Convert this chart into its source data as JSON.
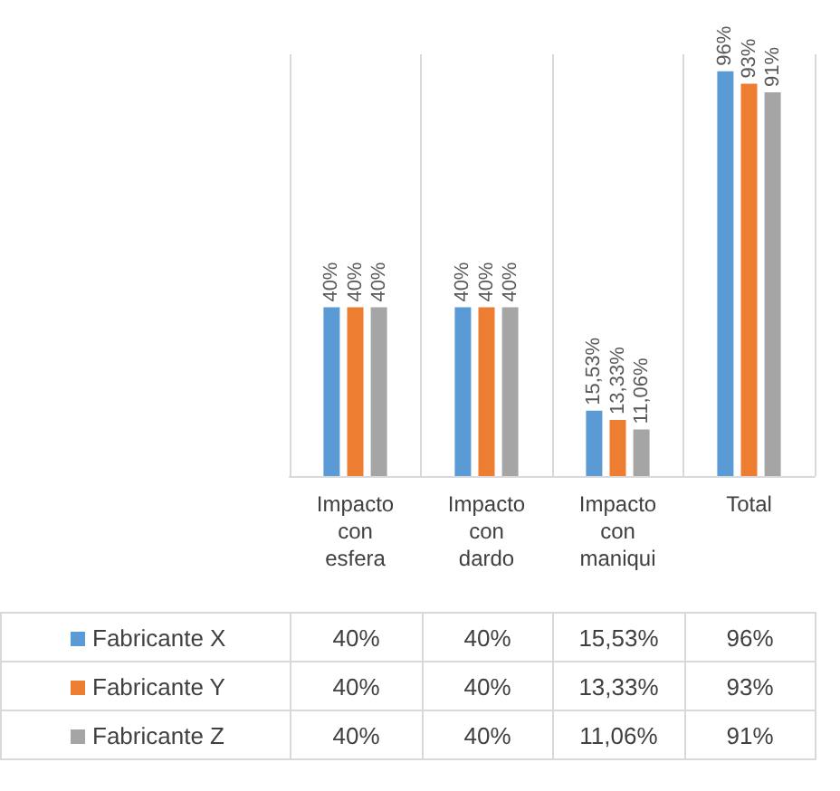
{
  "chart_data": {
    "type": "bar",
    "categories": [
      "Impacto con esfera",
      "Impacto con dardo",
      "Impacto con maniqui",
      "Total"
    ],
    "series": [
      {
        "name": "Fabricante X",
        "color": "#5b9bd5",
        "values": [
          40,
          40,
          15.53,
          96
        ],
        "value_labels": [
          "40%",
          "40%",
          "15,53%",
          "96%"
        ]
      },
      {
        "name": "Fabricante Y",
        "color": "#ed7d31",
        "values": [
          40,
          40,
          13.33,
          93
        ],
        "value_labels": [
          "40%",
          "40%",
          "13,33%",
          "93%"
        ]
      },
      {
        "name": "Fabricante Z",
        "color": "#a5a5a5",
        "values": [
          40,
          40,
          11.06,
          91
        ],
        "value_labels": [
          "40%",
          "40%",
          "11,06%",
          "91%"
        ]
      }
    ],
    "grid": "x",
    "legend": "bottom left"
  }
}
